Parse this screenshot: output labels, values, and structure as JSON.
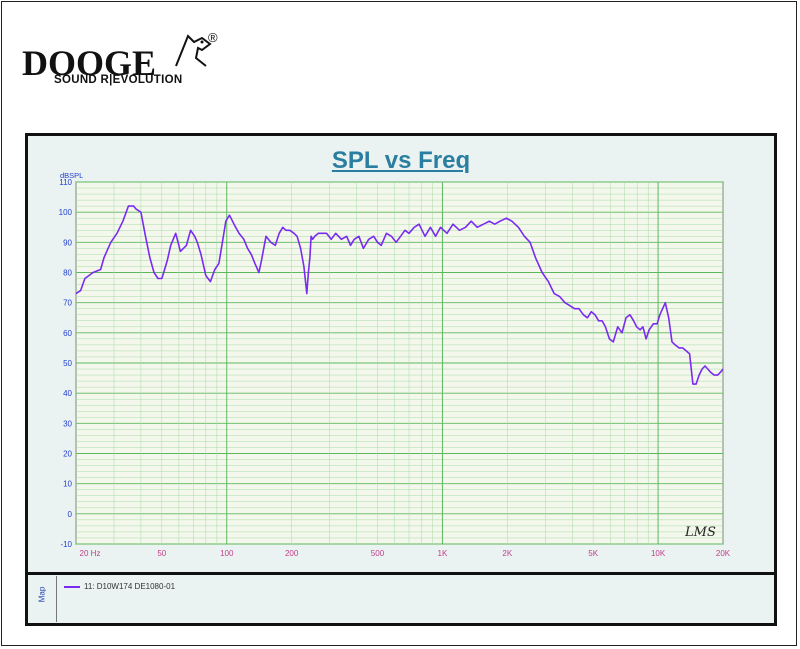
{
  "brand": {
    "name": "DOOGE",
    "registered": "®",
    "tagline": "SOUND R|EVOLUTION"
  },
  "chart_data": {
    "type": "line",
    "title": "SPL vs Freq",
    "ylabel": "dBSPL",
    "xlabel": "",
    "xscale": "log",
    "xlim": [
      20,
      20000
    ],
    "ylim": [
      -10,
      110
    ],
    "yticks": [
      -10,
      0,
      10,
      20,
      30,
      40,
      50,
      60,
      70,
      80,
      90,
      100,
      110
    ],
    "ytick_labels": [
      "-10",
      "0",
      "10",
      "20",
      "30",
      "40",
      "50",
      "60",
      "70",
      "80",
      "90",
      "100",
      "110"
    ],
    "xticks": [
      20,
      50,
      100,
      200,
      500,
      1000,
      2000,
      5000,
      10000,
      20000
    ],
    "xtick_labels": [
      "20 Hz",
      "50",
      "100",
      "200",
      "500",
      "1K",
      "2K",
      "5K",
      "10K",
      "20K"
    ],
    "grid": true,
    "watermark": "LMS",
    "series": [
      {
        "name": "11: D10W174   DE1080-01",
        "color": "#7a2bf0",
        "x": [
          20,
          21,
          22,
          24,
          26,
          27,
          29,
          31,
          33,
          35,
          37,
          38,
          40,
          42,
          44,
          46,
          48,
          50,
          51,
          53,
          55,
          58,
          61,
          65,
          68,
          71,
          73,
          76,
          80,
          84,
          88,
          92,
          96,
          99,
          103,
          108,
          114,
          120,
          125,
          130,
          135,
          141,
          145,
          152,
          160,
          168,
          175,
          182,
          188,
          196,
          205,
          212,
          220,
          228,
          235,
          239,
          243,
          246,
          250,
          256,
          266,
          278,
          290,
          305,
          320,
          340,
          360,
          375,
          390,
          410,
          430,
          455,
          480,
          500,
          520,
          550,
          580,
          610,
          640,
          670,
          700,
          740,
          780,
          830,
          880,
          930,
          980,
          1050,
          1120,
          1200,
          1280,
          1360,
          1450,
          1550,
          1650,
          1750,
          1850,
          1980,
          2100,
          2250,
          2400,
          2550,
          2700,
          2900,
          3100,
          3300,
          3500,
          3700,
          3900,
          4100,
          4300,
          4500,
          4700,
          4900,
          5100,
          5300,
          5500,
          5700,
          5950,
          6200,
          6500,
          6800,
          7100,
          7400,
          7700,
          7950,
          8250,
          8500,
          8800,
          9100,
          9500,
          9900,
          10200,
          10500,
          10800,
          11200,
          11600,
          12000,
          12500,
          13000,
          13500,
          14000,
          14500,
          15000,
          15500,
          16000,
          16500,
          17000,
          17500,
          18200,
          18900,
          19500,
          20000
        ],
        "y": [
          73,
          74,
          78,
          80,
          81,
          85,
          90,
          93,
          97,
          102,
          102,
          101,
          100,
          92,
          85,
          80,
          78,
          78,
          80,
          84,
          89,
          93,
          87,
          89,
          94,
          92,
          90,
          86,
          79,
          77,
          81,
          83,
          91,
          97,
          99,
          96,
          93,
          91,
          88,
          86,
          83,
          80,
          84,
          92,
          90,
          89,
          93,
          95,
          94,
          94,
          93,
          92,
          88,
          82,
          73,
          80,
          85,
          92,
          91,
          92,
          93,
          93,
          93,
          91,
          93,
          91,
          92,
          89,
          91,
          92,
          88,
          91,
          92,
          90,
          89,
          93,
          92,
          90,
          92,
          94,
          93,
          95,
          96,
          92,
          95,
          92,
          95,
          93,
          96,
          94,
          95,
          97,
          95,
          96,
          97,
          96,
          97,
          98,
          97,
          95,
          92,
          90,
          85,
          80,
          77,
          73,
          72,
          70,
          69,
          68,
          68,
          66,
          65,
          67,
          66,
          64,
          64,
          62,
          58,
          57,
          62,
          60,
          65,
          66,
          64,
          62,
          61,
          62,
          58,
          61,
          63,
          63,
          66,
          68,
          70,
          65,
          57,
          56,
          55,
          55,
          54,
          53,
          43,
          43,
          46,
          48,
          49,
          48,
          47,
          46,
          46,
          47,
          48
        ]
      }
    ]
  },
  "legend": {
    "side_label": "Map",
    "entry": "11: D10W174   DE1080-01"
  },
  "colors": {
    "curve": "#7a2bf0",
    "title": "#2a7fa0",
    "grid": "#7cc47c",
    "axis_text": "#1f3fd0"
  }
}
